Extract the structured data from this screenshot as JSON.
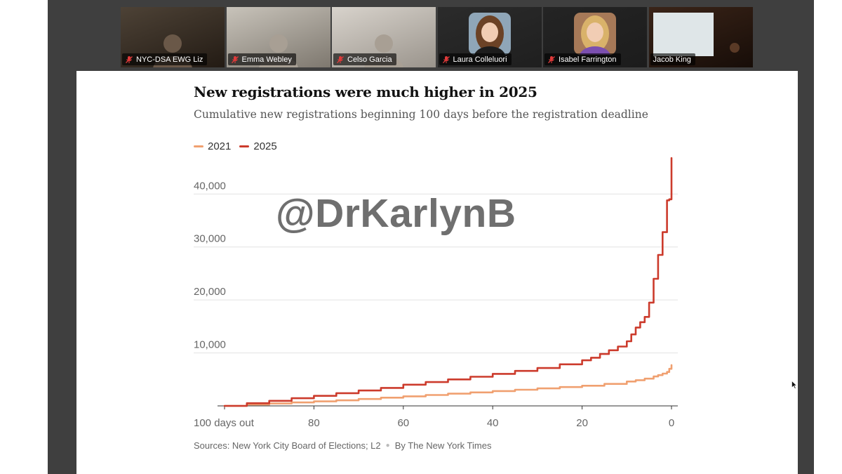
{
  "meeting": {
    "participants": [
      {
        "name": "NYC-DSA EWG Liz",
        "muted": true,
        "video": "camera",
        "active": false
      },
      {
        "name": "Emma Webley",
        "muted": true,
        "video": "camera",
        "active": false
      },
      {
        "name": "Celso Garcia",
        "muted": true,
        "video": "camera",
        "active": false
      },
      {
        "name": "Laura Colleluori",
        "muted": true,
        "video": "avatar",
        "active": false
      },
      {
        "name": "Isabel Farrington",
        "muted": true,
        "video": "avatar",
        "active": false
      },
      {
        "name": "Jacob King",
        "muted": false,
        "video": "camera",
        "active": true
      }
    ],
    "active_speaker_color": "#4fbf4f"
  },
  "slide": {
    "watermark": "@DrKarlynB",
    "sources": "Sources: New York City Board of Elections; L2",
    "byline": "By The New York Times"
  },
  "chart_data": {
    "type": "line",
    "title": "New registrations were much higher in 2025",
    "subtitle": "Cumulative new registrations beginning 100 days before the registration deadline",
    "xlabel": "",
    "ylabel": "",
    "x_reversed": true,
    "xlim": [
      100,
      0
    ],
    "ylim": [
      0,
      46000
    ],
    "x_ticks": [
      {
        "value": 100,
        "label": "100 days out"
      },
      {
        "value": 80,
        "label": "80"
      },
      {
        "value": 60,
        "label": "60"
      },
      {
        "value": 40,
        "label": "40"
      },
      {
        "value": 20,
        "label": "20"
      },
      {
        "value": 0,
        "label": "0"
      }
    ],
    "y_ticks": [
      {
        "value": 10000,
        "label": "10,000"
      },
      {
        "value": 20000,
        "label": "20,000"
      },
      {
        "value": 30000,
        "label": "30,000"
      },
      {
        "value": 40000,
        "label": "40,000"
      }
    ],
    "grid": true,
    "legend_position": "top-left",
    "series": [
      {
        "name": "2021",
        "color": "#f0a070",
        "step": true,
        "x": [
          100,
          95,
          90,
          85,
          80,
          75,
          70,
          65,
          60,
          55,
          50,
          45,
          40,
          35,
          30,
          25,
          20,
          15,
          10,
          8,
          6,
          4,
          3,
          2,
          1,
          0.5,
          0
        ],
        "y": [
          0,
          250,
          450,
          650,
          850,
          1050,
          1300,
          1550,
          1800,
          2050,
          2300,
          2550,
          2800,
          3050,
          3300,
          3550,
          3800,
          4150,
          4600,
          4850,
          5150,
          5550,
          5800,
          6100,
          6400,
          7000,
          7700
        ]
      },
      {
        "name": "2025",
        "color": "#cc3b2c",
        "step": true,
        "x": [
          100,
          95,
          90,
          85,
          80,
          75,
          70,
          65,
          60,
          55,
          50,
          45,
          40,
          35,
          30,
          25,
          20,
          18,
          16,
          14,
          12,
          10,
          9,
          8,
          7,
          6,
          5,
          4,
          3,
          2,
          1,
          0.5,
          0
        ],
        "y": [
          0,
          500,
          950,
          1450,
          1900,
          2400,
          2900,
          3400,
          4000,
          4500,
          5000,
          5500,
          6050,
          6600,
          7150,
          7850,
          8600,
          9100,
          9800,
          10500,
          11200,
          12200,
          13500,
          14800,
          15800,
          16800,
          19500,
          24000,
          28500,
          32800,
          38800,
          39000,
          46800
        ]
      }
    ],
    "annotations": []
  }
}
